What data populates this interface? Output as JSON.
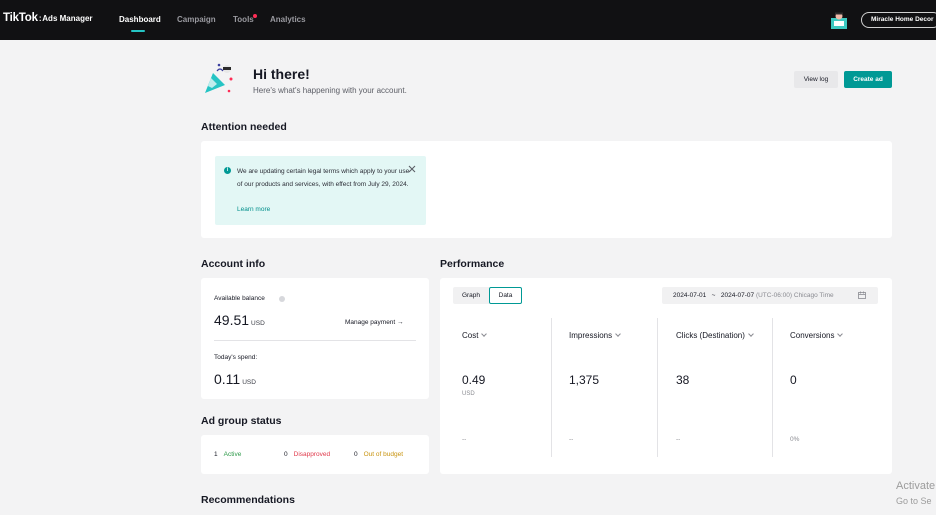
{
  "header": {
    "logo": "TikTok",
    "logo_sep": ":",
    "logo_sub": "Ads Manager",
    "nav": [
      "Dashboard",
      "Campaign",
      "Tools",
      "Analytics"
    ],
    "active_nav": "Dashboard",
    "account_name": "Miracle Home Decor"
  },
  "greeting": {
    "title": "Hi there!",
    "subtitle": "Here's what's happening with your account.",
    "view_log": "View log",
    "create_ad": "Create ad"
  },
  "attention": {
    "title": "Attention needed",
    "notice": "We are updating certain legal terms which apply to your use of our products and services, with effect from July 29, 2024.",
    "link": "Learn more"
  },
  "account_info": {
    "title": "Account info",
    "balance_label": "Available balance",
    "balance_value": "49.51",
    "balance_unit": "USD",
    "manage_payment": "Manage payment →",
    "spend_label": "Today's spend:",
    "spend_value": "0.11",
    "spend_unit": "USD"
  },
  "ad_group_status": {
    "title": "Ad group status",
    "items": [
      {
        "count": "1",
        "label": "Active",
        "color": "#2e9a4a"
      },
      {
        "count": "0",
        "label": "Disapproved",
        "color": "#e0394b"
      },
      {
        "count": "0",
        "label": "Out of budget",
        "color": "#c8930e"
      }
    ]
  },
  "performance": {
    "title": "Performance",
    "view_tabs": [
      "Graph",
      "Data"
    ],
    "selected_tab": "Data",
    "date_start": "2024-07-01",
    "date_sep": "~",
    "date_end": "2024-07-07",
    "timezone": "(UTC-06:00) Chicago Time",
    "metrics": [
      {
        "name": "Cost",
        "value": "0.49",
        "unit": "USD",
        "footer": "--"
      },
      {
        "name": "Impressions",
        "value": "1,375",
        "unit": "",
        "footer": "--"
      },
      {
        "name": "Clicks (Destination)",
        "value": "38",
        "unit": "",
        "footer": "--"
      },
      {
        "name": "Conversions",
        "value": "0",
        "unit": "",
        "footer": "0%"
      }
    ]
  },
  "recommendations": {
    "title": "Recommendations"
  },
  "watermark": {
    "line1": "Activate",
    "line2": "Go to Se"
  },
  "colors": {
    "accent": "#009995",
    "nav_bg": "#111113",
    "notice_bg": "#e3f7f5"
  }
}
